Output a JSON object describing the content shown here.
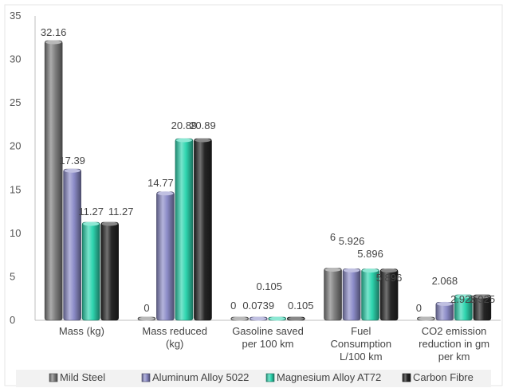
{
  "chart_data": {
    "type": "bar",
    "categories": [
      [
        "Mass (kg)"
      ],
      [
        "Mass reduced",
        "(kg)"
      ],
      [
        "Gasoline saved",
        "per 100 km"
      ],
      [
        "Fuel",
        "Consumption",
        "L/100 km"
      ],
      [
        "CO2 emission",
        "reduction in gm",
        "per km"
      ]
    ],
    "series": [
      {
        "name": "Mild Steel",
        "values": [
          32.16,
          0,
          0,
          6,
          0
        ],
        "labels": [
          "32.16",
          "0",
          "0",
          "6",
          "0"
        ],
        "color": "#7f7f7f"
      },
      {
        "name": "Aluminum Alloy 5022",
        "values": [
          17.39,
          14.77,
          0.0739,
          5.926,
          2.068
        ],
        "labels": [
          "17.39",
          "14.77",
          "0.0739",
          "5.926",
          "2.068"
        ],
        "color": "#8c8cc8"
      },
      {
        "name": "Magnesium Alloy AT72",
        "values": [
          11.27,
          20.89,
          0.105,
          5.896,
          2.925
        ],
        "labels": [
          "11.27",
          "20.89",
          "0.105",
          "5.896",
          "2.925"
        ],
        "color": "#2fd6b0"
      },
      {
        "name": "Carbon Fibre",
        "values": [
          11.27,
          20.89,
          0.105,
          5.896,
          2.925
        ],
        "labels": [
          "11.27",
          "20.89",
          "0.105",
          "5.896",
          "2.925"
        ],
        "color": "#262626"
      }
    ],
    "yticks": [
      "0",
      "5",
      "10",
      "15",
      "20",
      "25",
      "30",
      "35"
    ],
    "ylim": [
      0,
      35
    ],
    "grid": false,
    "legend": "bottom",
    "title": "",
    "xlabel": "",
    "ylabel": ""
  }
}
